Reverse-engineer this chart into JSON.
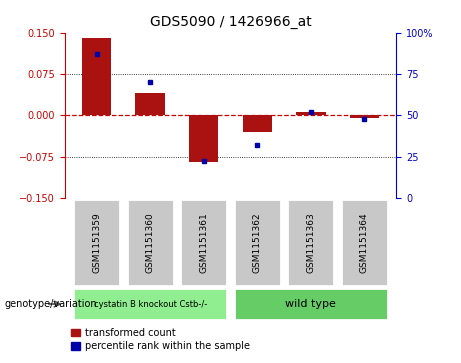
{
  "title": "GDS5090 / 1426966_at",
  "samples": [
    "GSM1151359",
    "GSM1151360",
    "GSM1151361",
    "GSM1151362",
    "GSM1151363",
    "GSM1151364"
  ],
  "red_values": [
    0.14,
    0.04,
    -0.085,
    -0.03,
    0.005,
    -0.005
  ],
  "blue_values": [
    87,
    70,
    22,
    32,
    52,
    48
  ],
  "ylim_left": [
    -0.15,
    0.15
  ],
  "ylim_right": [
    0,
    100
  ],
  "yticks_left": [
    -0.15,
    -0.075,
    0,
    0.075,
    0.15
  ],
  "yticks_right": [
    0,
    25,
    50,
    75,
    100
  ],
  "group1_label": "cystatin B knockout Cstb-/-",
  "group2_label": "wild type",
  "group1_indices": [
    0,
    1,
    2
  ],
  "group2_indices": [
    3,
    4,
    5
  ],
  "group1_color": "#90EE90",
  "group2_color": "#66CC66",
  "bar_color": "#AA1111",
  "dot_color": "#0000AA",
  "bg_color": "#FFFFFF",
  "legend_red_label": "transformed count",
  "legend_blue_label": "percentile rank within the sample",
  "genotype_label": "genotype/variation",
  "zero_line_color": "#CC0000",
  "left_axis_color": "#CC0000",
  "right_axis_color": "#0000CC",
  "bar_width": 0.55
}
